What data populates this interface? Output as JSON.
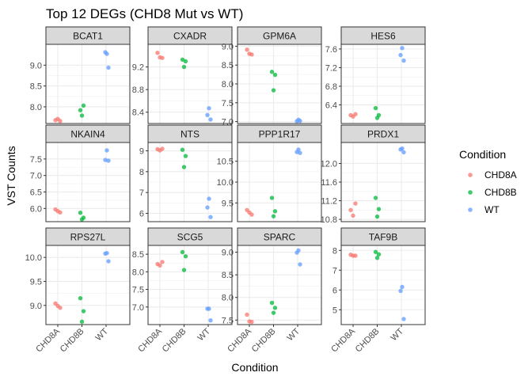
{
  "chart_data": {
    "type": "scatter",
    "title": "Top 12 DEGs (CHD8 Mut vs WT)",
    "xlabel": "Condition",
    "ylabel": "VST Counts",
    "categories": [
      "CHD8A",
      "CHD8B",
      "WT"
    ],
    "legend": {
      "title": "Condition",
      "position": "right",
      "entries": [
        {
          "name": "CHD8A",
          "color": "#F8766D"
        },
        {
          "name": "CHD8B",
          "color": "#00BA38"
        },
        {
          "name": "WT",
          "color": "#619CFF"
        }
      ]
    },
    "grid": true,
    "facets": [
      {
        "gene": "BCAT1",
        "ylim": [
          7.6,
          9.5
        ],
        "yticks": [
          8.0,
          8.5,
          9.0
        ],
        "tick_labels": [
          "8.0",
          "8.5",
          "9.0"
        ],
        "points": [
          {
            "x": "CHD8A",
            "y": 7.68
          },
          {
            "x": "CHD8A",
            "y": 7.71
          },
          {
            "x": "CHD8A",
            "y": 7.66
          },
          {
            "x": "CHD8B",
            "y": 7.92
          },
          {
            "x": "CHD8B",
            "y": 8.03
          },
          {
            "x": "CHD8B",
            "y": 7.79
          },
          {
            "x": "WT",
            "y": 9.27
          },
          {
            "x": "WT",
            "y": 9.31
          },
          {
            "x": "WT",
            "y": 8.94
          }
        ]
      },
      {
        "gene": "CXADR",
        "ylim": [
          8.2,
          9.6
        ],
        "yticks": [
          8.4,
          8.8,
          9.2
        ],
        "tick_labels": [
          "8.4",
          "8.8",
          "9.2"
        ],
        "points": [
          {
            "x": "CHD8A",
            "y": 9.45
          },
          {
            "x": "CHD8A",
            "y": 9.37
          },
          {
            "x": "CHD8A",
            "y": 9.36
          },
          {
            "x": "CHD8B",
            "y": 9.33
          },
          {
            "x": "CHD8B",
            "y": 9.3
          },
          {
            "x": "CHD8B",
            "y": 9.2
          },
          {
            "x": "WT",
            "y": 8.47
          },
          {
            "x": "WT",
            "y": 8.35
          },
          {
            "x": "WT",
            "y": 8.27
          }
        ]
      },
      {
        "gene": "GPM6A",
        "ylim": [
          6.95,
          9.05
        ],
        "yticks": [
          7.0,
          7.5,
          8.0,
          8.5,
          9.0
        ],
        "tick_labels": [
          "7.0",
          "7.5",
          "8.0",
          "8.5",
          "9.0"
        ],
        "points": [
          {
            "x": "CHD8A",
            "y": 8.91
          },
          {
            "x": "CHD8A",
            "y": 8.8
          },
          {
            "x": "CHD8A",
            "y": 8.78
          },
          {
            "x": "CHD8B",
            "y": 8.32
          },
          {
            "x": "CHD8B",
            "y": 8.24
          },
          {
            "x": "CHD8B",
            "y": 7.83
          },
          {
            "x": "WT",
            "y": 7.05
          },
          {
            "x": "WT",
            "y": 7.01
          },
          {
            "x": "WT",
            "y": 7.02
          }
        ]
      },
      {
        "gene": "HES6",
        "ylim": [
          6.0,
          7.7
        ],
        "yticks": [
          6.4,
          6.8,
          7.2,
          7.6
        ],
        "tick_labels": [
          "6.4",
          "6.8",
          "7.2",
          "7.6"
        ],
        "points": [
          {
            "x": "CHD8A",
            "y": 6.18
          },
          {
            "x": "CHD8A",
            "y": 6.15
          },
          {
            "x": "CHD8A",
            "y": 6.2
          },
          {
            "x": "CHD8B",
            "y": 6.33
          },
          {
            "x": "CHD8B",
            "y": 6.18
          },
          {
            "x": "CHD8B",
            "y": 6.12
          },
          {
            "x": "WT",
            "y": 7.62
          },
          {
            "x": "WT",
            "y": 7.47
          },
          {
            "x": "WT",
            "y": 7.35
          }
        ]
      },
      {
        "gene": "NKAIN4",
        "ylim": [
          5.6,
          8.0
        ],
        "yticks": [
          6.0,
          6.5,
          7.0,
          7.5
        ],
        "tick_labels": [
          "6.0",
          "6.5",
          "7.0",
          "7.5"
        ],
        "points": [
          {
            "x": "CHD8A",
            "y": 5.97
          },
          {
            "x": "CHD8A",
            "y": 5.92
          },
          {
            "x": "CHD8A",
            "y": 5.88
          },
          {
            "x": "CHD8B",
            "y": 5.87
          },
          {
            "x": "CHD8B",
            "y": 5.72
          },
          {
            "x": "CHD8B",
            "y": 5.67
          },
          {
            "x": "WT",
            "y": 7.76
          },
          {
            "x": "WT",
            "y": 7.47
          },
          {
            "x": "WT",
            "y": 7.45
          }
        ]
      },
      {
        "gene": "NTS",
        "ylim": [
          5.6,
          9.4
        ],
        "yticks": [
          6,
          7,
          8,
          9
        ],
        "tick_labels": [
          "6",
          "7",
          "8",
          "9"
        ],
        "points": [
          {
            "x": "CHD8A",
            "y": 9.08
          },
          {
            "x": "CHD8A",
            "y": 9.02
          },
          {
            "x": "CHD8A",
            "y": 9.1
          },
          {
            "x": "CHD8B",
            "y": 9.05
          },
          {
            "x": "CHD8B",
            "y": 8.75
          },
          {
            "x": "CHD8B",
            "y": 8.22
          },
          {
            "x": "WT",
            "y": 6.7
          },
          {
            "x": "WT",
            "y": 6.28
          },
          {
            "x": "WT",
            "y": 5.82
          }
        ]
      },
      {
        "gene": "PPP1R17",
        "ylim": [
          9.05,
          10.95
        ],
        "yticks": [
          9.5,
          10.0,
          10.5
        ],
        "tick_labels": [
          "9.5",
          "10.0",
          "10.5"
        ],
        "points": [
          {
            "x": "CHD8A",
            "y": 9.33
          },
          {
            "x": "CHD8A",
            "y": 9.27
          },
          {
            "x": "CHD8A",
            "y": 9.22
          },
          {
            "x": "CHD8B",
            "y": 9.62
          },
          {
            "x": "CHD8B",
            "y": 9.3
          },
          {
            "x": "CHD8B",
            "y": 9.18
          },
          {
            "x": "WT",
            "y": 10.78
          },
          {
            "x": "WT",
            "y": 10.72
          },
          {
            "x": "WT",
            "y": 10.7
          }
        ]
      },
      {
        "gene": "PRDX1",
        "ylim": [
          10.75,
          12.45
        ],
        "yticks": [
          10.8,
          11.2,
          11.6,
          12.0
        ],
        "tick_labels": [
          "10.8",
          "11.2",
          "11.6",
          "12.0"
        ],
        "points": [
          {
            "x": "CHD8A",
            "y": 11.0
          },
          {
            "x": "CHD8A",
            "y": 10.88
          },
          {
            "x": "CHD8A",
            "y": 11.14
          },
          {
            "x": "CHD8B",
            "y": 11.26
          },
          {
            "x": "CHD8B",
            "y": 11.02
          },
          {
            "x": "CHD8B",
            "y": 10.86
          },
          {
            "x": "WT",
            "y": 12.32
          },
          {
            "x": "WT",
            "y": 12.3
          },
          {
            "x": "WT",
            "y": 12.24
          }
        ]
      },
      {
        "gene": "RPS27L",
        "ylim": [
          8.6,
          10.25
        ],
        "yticks": [
          9.0,
          9.5,
          10.0
        ],
        "tick_labels": [
          "9.0",
          "9.5",
          "10.0"
        ],
        "points": [
          {
            "x": "CHD8A",
            "y": 9.04
          },
          {
            "x": "CHD8A",
            "y": 8.99
          },
          {
            "x": "CHD8A",
            "y": 8.95
          },
          {
            "x": "CHD8B",
            "y": 9.15
          },
          {
            "x": "CHD8B",
            "y": 8.88
          },
          {
            "x": "CHD8B",
            "y": 8.66
          },
          {
            "x": "WT",
            "y": 10.09
          },
          {
            "x": "WT",
            "y": 10.08
          },
          {
            "x": "WT",
            "y": 9.92
          }
        ]
      },
      {
        "gene": "SCG5",
        "ylim": [
          6.5,
          8.75
        ],
        "yticks": [
          7.0,
          7.5,
          8.0,
          8.5
        ],
        "tick_labels": [
          "7.0",
          "7.5",
          "8.0",
          "8.5"
        ],
        "points": [
          {
            "x": "CHD8A",
            "y": 8.22
          },
          {
            "x": "CHD8A",
            "y": 8.18
          },
          {
            "x": "CHD8A",
            "y": 8.28
          },
          {
            "x": "CHD8B",
            "y": 8.56
          },
          {
            "x": "CHD8B",
            "y": 8.44
          },
          {
            "x": "CHD8B",
            "y": 8.05
          },
          {
            "x": "WT",
            "y": 6.95
          },
          {
            "x": "WT",
            "y": 6.95
          },
          {
            "x": "WT",
            "y": 6.62
          }
        ]
      },
      {
        "gene": "SPARC",
        "ylim": [
          7.4,
          9.15
        ],
        "yticks": [
          7.5,
          8.0,
          8.5,
          9.0
        ],
        "tick_labels": [
          "7.5",
          "8.0",
          "8.5",
          "9.0"
        ],
        "points": [
          {
            "x": "CHD8A",
            "y": 7.62
          },
          {
            "x": "CHD8A",
            "y": 7.47
          },
          {
            "x": "CHD8A",
            "y": 7.46
          },
          {
            "x": "CHD8B",
            "y": 7.88
          },
          {
            "x": "CHD8B",
            "y": 7.77
          },
          {
            "x": "CHD8B",
            "y": 7.66
          },
          {
            "x": "WT",
            "y": 9.04
          },
          {
            "x": "WT",
            "y": 8.99
          },
          {
            "x": "WT",
            "y": 8.73
          }
        ]
      },
      {
        "gene": "TAF9B",
        "ylim": [
          4.25,
          8.25
        ],
        "yticks": [
          5,
          6,
          7,
          8
        ],
        "tick_labels": [
          "5",
          "6",
          "7",
          "8"
        ],
        "points": [
          {
            "x": "CHD8A",
            "y": 7.78
          },
          {
            "x": "CHD8A",
            "y": 7.73
          },
          {
            "x": "CHD8A",
            "y": 7.73
          },
          {
            "x": "CHD8B",
            "y": 7.92
          },
          {
            "x": "CHD8B",
            "y": 7.8
          },
          {
            "x": "CHD8B",
            "y": 7.62
          },
          {
            "x": "WT",
            "y": 6.15
          },
          {
            "x": "WT",
            "y": 5.95
          },
          {
            "x": "WT",
            "y": 4.53
          }
        ]
      }
    ]
  }
}
